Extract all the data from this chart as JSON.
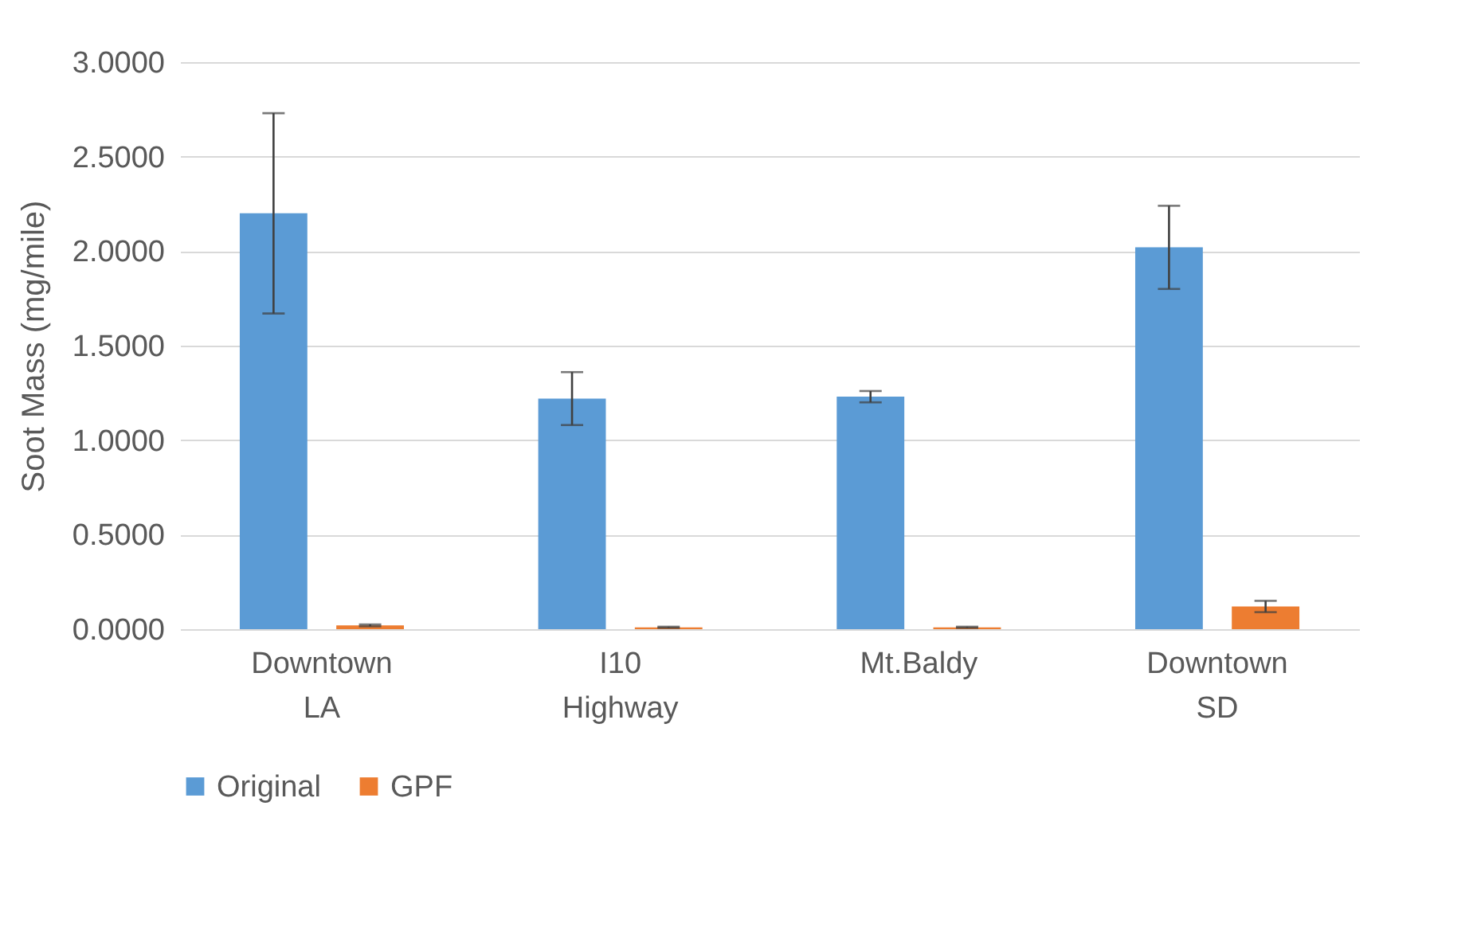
{
  "chart_data": {
    "type": "bar",
    "ylabel": "Soot Mass (mg/mile)",
    "categories": [
      "Downtown LA",
      "I10 Highway",
      "Mt.Baldy",
      "Downtown SD"
    ],
    "series": [
      {
        "name": "Original",
        "color": "#5b9bd5",
        "values": [
          2.2,
          1.22,
          1.23,
          2.02
        ],
        "errors": [
          0.53,
          0.14,
          0.03,
          0.22
        ]
      },
      {
        "name": "GPF",
        "color": "#ed7d31",
        "values": [
          0.02,
          0.01,
          0.01,
          0.12
        ],
        "errors": [
          0.005,
          0.003,
          0.003,
          0.03
        ]
      }
    ],
    "ylim": [
      0,
      3
    ],
    "yticks": [
      {
        "value": 0,
        "label": "0.0000"
      },
      {
        "value": 0.5,
        "label": "0.5000"
      },
      {
        "value": 1,
        "label": "1.0000"
      },
      {
        "value": 1.5,
        "label": "1.5000"
      },
      {
        "value": 2,
        "label": "2.0000"
      },
      {
        "value": 2.5,
        "label": "2.5000"
      },
      {
        "value": 3,
        "label": "3.0000"
      }
    ],
    "grid": "y",
    "legend": "bottom"
  }
}
